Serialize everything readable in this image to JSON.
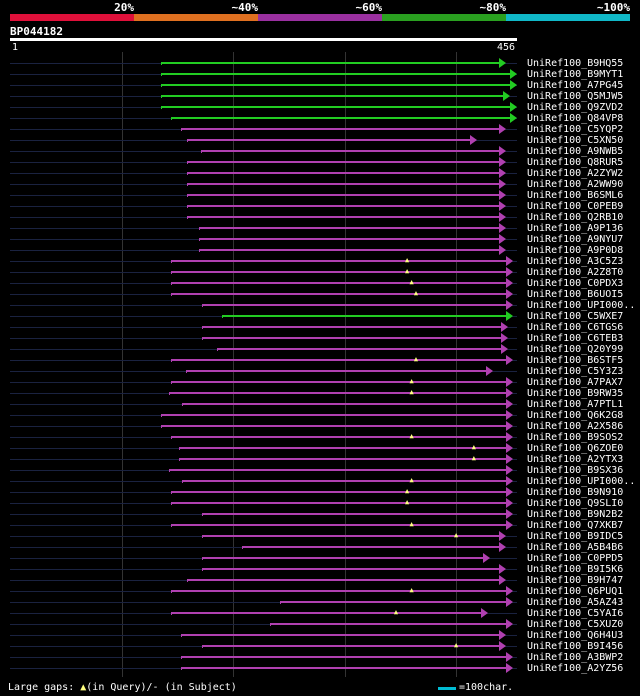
{
  "identity_scale": [
    {
      "label": "20%",
      "color": "#e0103a"
    },
    {
      "label": "~40%",
      "color": "#e07020"
    },
    {
      "label": "~60%",
      "color": "#9a30a0"
    },
    {
      "label": "~80%",
      "color": "#2aa020"
    },
    {
      "label": "~100%",
      "color": "#10b8c8"
    }
  ],
  "query": {
    "id": "BP044182",
    "start": "1",
    "end": "456",
    "length": 456
  },
  "colors": {
    "green": "#22cc22",
    "purple": "#b040b0",
    "line": "#1a2240",
    "gap": "#ffff80"
  },
  "hits": [
    {
      "name": "UniRef100_B9HQ55",
      "start": 136,
      "end": 446,
      "color": "green",
      "gaps": []
    },
    {
      "name": "UniRef100_B9MYT1",
      "start": 136,
      "end": 456,
      "color": "green",
      "gaps": []
    },
    {
      "name": "UniRef100_A7PG45",
      "start": 136,
      "end": 456,
      "color": "green",
      "gaps": []
    },
    {
      "name": "UniRef100_Q5MJW5",
      "start": 136,
      "end": 450,
      "color": "green",
      "gaps": []
    },
    {
      "name": "UniRef100_Q9ZVD2",
      "start": 136,
      "end": 456,
      "color": "green",
      "gaps": []
    },
    {
      "name": "UniRef100_Q84VP8",
      "start": 145,
      "end": 456,
      "color": "green",
      "gaps": []
    },
    {
      "name": "UniRef100_C5YQP2",
      "start": 154,
      "end": 446,
      "color": "purple",
      "gaps": []
    },
    {
      "name": "UniRef100_C5XN50",
      "start": 159,
      "end": 420,
      "color": "purple",
      "gaps": []
    },
    {
      "name": "UniRef100_A9NWB5",
      "start": 172,
      "end": 446,
      "color": "purple",
      "gaps": []
    },
    {
      "name": "UniRef100_Q8RUR5",
      "start": 159,
      "end": 446,
      "color": "purple",
      "gaps": []
    },
    {
      "name": "UniRef100_A2ZYW2",
      "start": 159,
      "end": 446,
      "color": "purple",
      "gaps": []
    },
    {
      "name": "UniRef100_A2WW90",
      "start": 159,
      "end": 446,
      "color": "purple",
      "gaps": []
    },
    {
      "name": "UniRef100_B6SML6",
      "start": 159,
      "end": 446,
      "color": "purple",
      "gaps": []
    },
    {
      "name": "UniRef100_C0PEB9",
      "start": 159,
      "end": 446,
      "color": "purple",
      "gaps": []
    },
    {
      "name": "UniRef100_Q2RB10",
      "start": 159,
      "end": 446,
      "color": "purple",
      "gaps": []
    },
    {
      "name": "UniRef100_A9P136",
      "start": 170,
      "end": 446,
      "color": "purple",
      "gaps": []
    },
    {
      "name": "UniRef100_A9NYU7",
      "start": 170,
      "end": 446,
      "color": "purple",
      "gaps": []
    },
    {
      "name": "UniRef100_A9P0D8",
      "start": 170,
      "end": 446,
      "color": "purple",
      "gaps": []
    },
    {
      "name": "UniRef100_A3C5Z3",
      "start": 145,
      "end": 452,
      "color": "purple",
      "gaps": [
        358
      ]
    },
    {
      "name": "UniRef100_A2Z8T0",
      "start": 145,
      "end": 452,
      "color": "purple",
      "gaps": [
        358
      ]
    },
    {
      "name": "UniRef100_C0PDX3",
      "start": 145,
      "end": 452,
      "color": "purple",
      "gaps": [
        362
      ]
    },
    {
      "name": "UniRef100_B6UOI5",
      "start": 145,
      "end": 452,
      "color": "purple",
      "gaps": [
        366
      ]
    },
    {
      "name": "UniRef100_UPI000..",
      "start": 173,
      "end": 452,
      "color": "purple",
      "gaps": []
    },
    {
      "name": "UniRef100_C5WXE7",
      "start": 191,
      "end": 452,
      "color": "green",
      "gaps": []
    },
    {
      "name": "UniRef100_C6TGS6",
      "start": 173,
      "end": 448,
      "color": "purple",
      "gaps": []
    },
    {
      "name": "UniRef100_C6TEB3",
      "start": 173,
      "end": 448,
      "color": "purple",
      "gaps": []
    },
    {
      "name": "UniRef100_Q20Y99",
      "start": 186,
      "end": 448,
      "color": "purple",
      "gaps": []
    },
    {
      "name": "UniRef100_B6STF5",
      "start": 145,
      "end": 452,
      "color": "purple",
      "gaps": [
        366
      ]
    },
    {
      "name": "UniRef100_C5Y3Z3",
      "start": 158,
      "end": 434,
      "color": "purple",
      "gaps": []
    },
    {
      "name": "UniRef100_A7PAX7",
      "start": 145,
      "end": 452,
      "color": "purple",
      "gaps": [
        362
      ]
    },
    {
      "name": "UniRef100_B9RW35",
      "start": 143,
      "end": 452,
      "color": "purple",
      "gaps": [
        362
      ]
    },
    {
      "name": "UniRef100_A7PTL1",
      "start": 155,
      "end": 452,
      "color": "purple",
      "gaps": []
    },
    {
      "name": "UniRef100_Q6K2G8",
      "start": 136,
      "end": 452,
      "color": "purple",
      "gaps": []
    },
    {
      "name": "UniRef100_A2X586",
      "start": 136,
      "end": 452,
      "color": "purple",
      "gaps": []
    },
    {
      "name": "UniRef100_B9SOS2",
      "start": 145,
      "end": 452,
      "color": "purple",
      "gaps": [
        362
      ]
    },
    {
      "name": "UniRef100_Q6ZOE0",
      "start": 152,
      "end": 452,
      "color": "purple",
      "gaps": [
        418
      ]
    },
    {
      "name": "UniRef100_A2YTX3",
      "start": 152,
      "end": 452,
      "color": "purple",
      "gaps": [
        418
      ]
    },
    {
      "name": "UniRef100_B9SX36",
      "start": 143,
      "end": 452,
      "color": "purple",
      "gaps": []
    },
    {
      "name": "UniRef100_UPI000..",
      "start": 155,
      "end": 452,
      "color": "purple",
      "gaps": [
        362
      ]
    },
    {
      "name": "UniRef100_B9N910",
      "start": 145,
      "end": 452,
      "color": "purple",
      "gaps": [
        358
      ]
    },
    {
      "name": "UniRef100_Q9SLI0",
      "start": 145,
      "end": 452,
      "color": "purple",
      "gaps": [
        358
      ]
    },
    {
      "name": "UniRef100_B9N2B2",
      "start": 173,
      "end": 452,
      "color": "purple",
      "gaps": []
    },
    {
      "name": "UniRef100_Q7XKB7",
      "start": 145,
      "end": 452,
      "color": "purple",
      "gaps": [
        362
      ]
    },
    {
      "name": "UniRef100_B9IDC5",
      "start": 173,
      "end": 446,
      "color": "purple",
      "gaps": [
        402
      ]
    },
    {
      "name": "UniRef100_A5B4B6",
      "start": 209,
      "end": 446,
      "color": "purple",
      "gaps": []
    },
    {
      "name": "UniRef100_C0PPD5",
      "start": 173,
      "end": 432,
      "color": "purple",
      "gaps": []
    },
    {
      "name": "UniRef100_B9I5K6",
      "start": 173,
      "end": 446,
      "color": "purple",
      "gaps": []
    },
    {
      "name": "UniRef100_B9H747",
      "start": 159,
      "end": 446,
      "color": "purple",
      "gaps": []
    },
    {
      "name": "UniRef100_Q6PUQ1",
      "start": 145,
      "end": 452,
      "color": "purple",
      "gaps": [
        362
      ]
    },
    {
      "name": "UniRef100_A5AZ43",
      "start": 243,
      "end": 452,
      "color": "purple",
      "gaps": []
    },
    {
      "name": "UniRef100_C5YAI6",
      "start": 145,
      "end": 430,
      "color": "purple",
      "gaps": [
        348
      ]
    },
    {
      "name": "UniRef100_C5XUZ0",
      "start": 234,
      "end": 452,
      "color": "purple",
      "gaps": []
    },
    {
      "name": "UniRef100_Q6H4U3",
      "start": 154,
      "end": 446,
      "color": "purple",
      "gaps": []
    },
    {
      "name": "UniRef100_B9I456",
      "start": 173,
      "end": 446,
      "color": "purple",
      "gaps": [
        402
      ]
    },
    {
      "name": "UniRef100_A3BWP2",
      "start": 154,
      "end": 452,
      "color": "purple",
      "gaps": []
    },
    {
      "name": "UniRef100_A2YZ56",
      "start": 154,
      "end": 452,
      "color": "purple",
      "gaps": []
    }
  ],
  "legend": {
    "gaps_text": "Large gaps: ",
    "in_query": "(in Query)/",
    "dash": "-",
    "in_subject": " (in Subject)",
    "scale_text": "=100char."
  }
}
